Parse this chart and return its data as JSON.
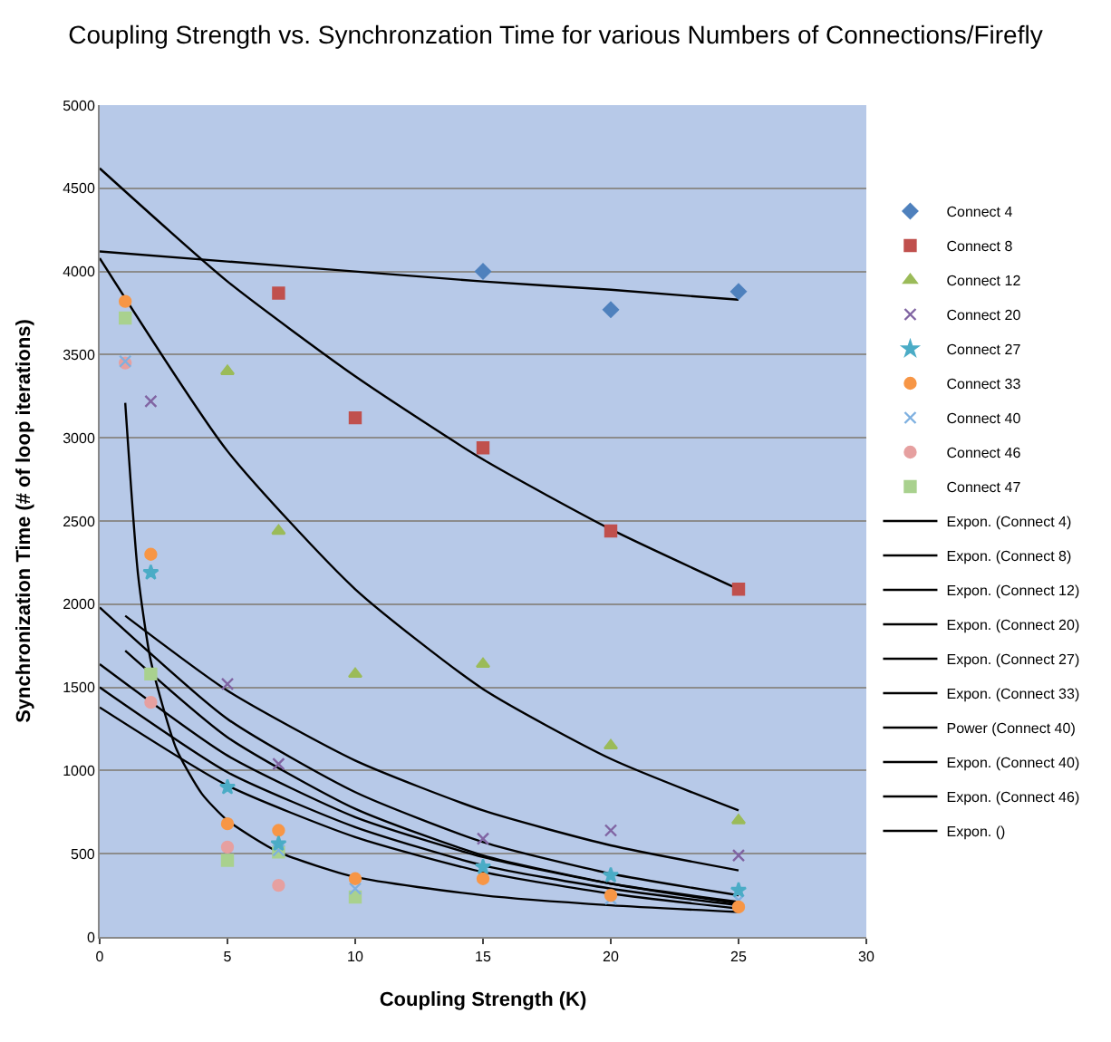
{
  "chart_data": {
    "type": "scatter",
    "title": "Coupling Strength vs. Synchronzation Time for various Numbers of Connections/Firefly",
    "xlabel": "Coupling Strength (K)",
    "ylabel": "Synchronization Time (# of loop iterations)",
    "xlim": [
      0,
      30
    ],
    "xticks": [
      0,
      5,
      10,
      15,
      20,
      25,
      30
    ],
    "ylim": [
      0,
      5000
    ],
    "yticks": [
      0,
      500,
      1000,
      1500,
      2000,
      2500,
      3000,
      3500,
      4000,
      4500,
      5000
    ],
    "grid": "y",
    "legend": "right",
    "series": [
      {
        "name": "Connect 4",
        "color": "#4f81bd",
        "marker": "diamond",
        "x": [
          15,
          20,
          25
        ],
        "values": [
          4000,
          3770,
          3880
        ]
      },
      {
        "name": "Connect 8",
        "color": "#c0504d",
        "marker": "square",
        "x": [
          7,
          10,
          15,
          20,
          25
        ],
        "values": [
          3870,
          3120,
          2940,
          2440,
          2090
        ]
      },
      {
        "name": "Connect 12",
        "color": "#9bbb59",
        "marker": "triangle",
        "x": [
          5,
          7,
          10,
          15,
          20,
          25
        ],
        "values": [
          3400,
          2440,
          1580,
          1640,
          1150,
          700
        ]
      },
      {
        "name": "Connect 20",
        "color": "#8064a2",
        "marker": "cross",
        "x": [
          2,
          5,
          7,
          15,
          20,
          25
        ],
        "values": [
          3220,
          1520,
          1040,
          590,
          640,
          490
        ]
      },
      {
        "name": "Connect 27",
        "color": "#4bacc6",
        "marker": "star",
        "x": [
          2,
          5,
          7,
          15,
          20,
          25
        ],
        "values": [
          2190,
          900,
          560,
          420,
          370,
          280
        ]
      },
      {
        "name": "Connect 33",
        "color": "#f79646",
        "marker": "circle",
        "x": [
          1,
          2,
          5,
          7,
          10,
          15,
          20,
          25
        ],
        "values": [
          3820,
          2300,
          680,
          640,
          350,
          350,
          250,
          180
        ]
      },
      {
        "name": "Connect 40",
        "color": "#7eb0e0",
        "marker": "cross",
        "x": [
          1,
          7,
          10,
          20,
          25
        ],
        "values": [
          3460,
          520,
          290,
          230,
          220
        ]
      },
      {
        "name": "Connect 46",
        "color": "#e6a0a0",
        "marker": "circle",
        "x": [
          1,
          2,
          5,
          7
        ],
        "values": [
          3450,
          1410,
          540,
          310
        ]
      },
      {
        "name": "Connect 47",
        "color": "#a9d18e",
        "marker": "square",
        "x": [
          1,
          2,
          5,
          7,
          10
        ],
        "values": [
          3720,
          1580,
          460,
          510,
          240
        ]
      },
      {
        "name": "Expon. (Connect 4)",
        "type": "line",
        "color": "#000000",
        "marker": "none",
        "x": [
          0,
          5,
          10,
          15,
          20,
          25
        ],
        "values": [
          4120,
          4060,
          4000,
          3940,
          3890,
          3830
        ]
      },
      {
        "name": "Expon. (Connect 8)",
        "type": "line",
        "color": "#000000",
        "marker": "none",
        "x": [
          0,
          5,
          10,
          15,
          20,
          25
        ],
        "values": [
          4620,
          3940,
          3370,
          2870,
          2450,
          2090
        ]
      },
      {
        "name": "Expon. (Connect 12)",
        "type": "line",
        "color": "#000000",
        "marker": "none",
        "x": [
          0,
          5,
          10,
          15,
          20,
          25
        ],
        "values": [
          4080,
          2920,
          2090,
          1490,
          1070,
          760
        ]
      },
      {
        "name": "Expon. (Connect 20)",
        "type": "line",
        "color": "#000000",
        "marker": "none",
        "x": [
          1,
          5,
          10,
          15,
          20,
          25
        ],
        "values": [
          1930,
          1480,
          1060,
          760,
          550,
          400
        ]
      },
      {
        "name": "Expon. (Connect 27)",
        "type": "line",
        "color": "#000000",
        "marker": "none",
        "x": [
          0,
          5,
          10,
          15,
          20,
          25
        ],
        "values": [
          1980,
          1310,
          870,
          570,
          380,
          250
        ]
      },
      {
        "name": "Expon. (Connect 33)",
        "type": "line",
        "color": "#000000",
        "marker": "none",
        "x": [
          0,
          5,
          10,
          15,
          20,
          25
        ],
        "values": [
          1640,
          1090,
          720,
          480,
          320,
          210
        ]
      },
      {
        "name": "Power (Connect 40)",
        "type": "line",
        "color": "#000000",
        "marker": "none",
        "x": [
          1,
          1.5,
          2,
          3,
          4,
          5,
          7,
          10,
          15,
          20,
          25
        ],
        "values": [
          3210,
          2180,
          1660,
          1130,
          860,
          700,
          510,
          360,
          250,
          190,
          150
        ]
      },
      {
        "name": "Expon. (Connect 40)",
        "type": "line",
        "color": "#000000",
        "marker": "none",
        "x": [
          0,
          5,
          10,
          15,
          20,
          25
        ],
        "values": [
          1500,
          990,
          660,
          430,
          290,
          190
        ]
      },
      {
        "name": "Expon. (Connect 46)",
        "type": "line",
        "color": "#000000",
        "marker": "none",
        "x": [
          0,
          5,
          10,
          15,
          20,
          25
        ],
        "values": [
          1380,
          910,
          600,
          390,
          260,
          170
        ]
      },
      {
        "name": "Expon. ()",
        "type": "line",
        "color": "#000000",
        "marker": "none",
        "x": [
          1,
          5,
          10,
          15,
          20,
          25
        ],
        "values": [
          1720,
          1200,
          770,
          490,
          320,
          200
        ]
      }
    ]
  }
}
